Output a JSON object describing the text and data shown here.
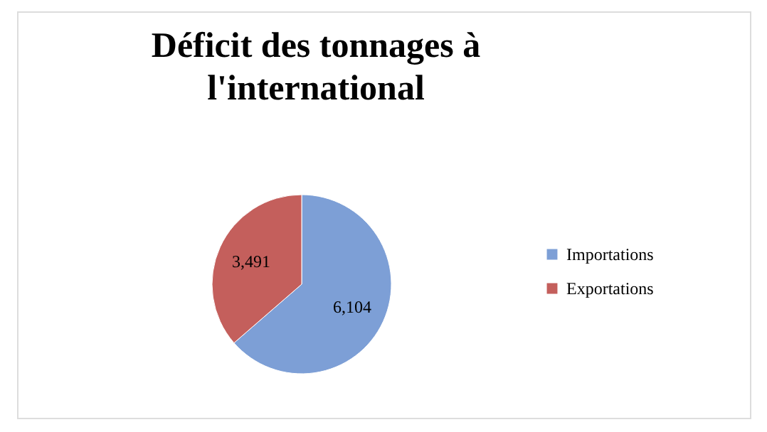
{
  "chart_data": {
    "type": "pie",
    "title": "Déficit des tonnages à l'international",
    "categories": [
      "Importations",
      "Exportations"
    ],
    "values": [
      6104,
      3491
    ],
    "colors": [
      "#7d9fd6",
      "#c45f5c"
    ],
    "value_labels": [
      "6,104",
      "3,491"
    ],
    "legend": "right"
  }
}
